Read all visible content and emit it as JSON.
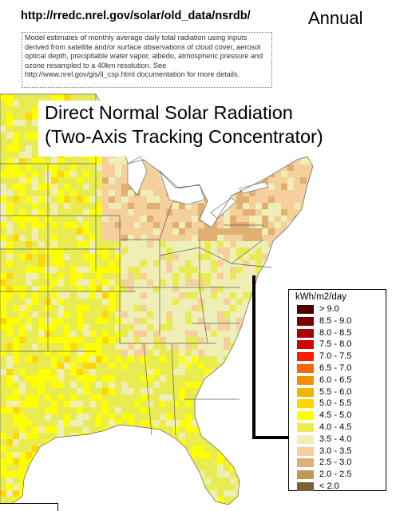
{
  "header": {
    "url": "http://rredc.nrel.gov/solar/old_data/nsrdb/",
    "period": "Annual"
  },
  "note": {
    "text": "Model estimates of monthly average daily total radiation using inputs derived from satellite and/or surface observations of cloud cover, aerosol optical depth, precipitable water vapor, albedo, atmospheric pressure and ozone resampled to a 40km resolution. See http://www.nrel.gov/gis/il_csp.html documentation for more details."
  },
  "title": {
    "line1": "Direct Normal Solar Radiation",
    "line2": "(Two-Axis Tracking Concentrator)"
  },
  "legend": {
    "unit": "kWh/m2/day",
    "classes": [
      {
        "label": "> 9.0",
        "color": "#4a0000"
      },
      {
        "label": "8.5 - 9.0",
        "color": "#7a0000"
      },
      {
        "label": "8.0 - 8.5",
        "color": "#a80000"
      },
      {
        "label": "7.5 - 8.0",
        "color": "#d20000"
      },
      {
        "label": "7.0 - 7.5",
        "color": "#ff1a00"
      },
      {
        "label": "6.5 - 7.0",
        "color": "#f06a00"
      },
      {
        "label": "6.0 - 6.5",
        "color": "#f29000"
      },
      {
        "label": "5.5 - 6.0",
        "color": "#f6b400"
      },
      {
        "label": "5.0 - 5.5",
        "color": "#ffd700"
      },
      {
        "label": "4.5 - 5.0",
        "color": "#ffff00"
      },
      {
        "label": "4.0 - 4.5",
        "color": "#e8ec50"
      },
      {
        "label": "3.5 - 4.0",
        "color": "#eeeeb6"
      },
      {
        "label": "3.0 - 3.5",
        "color": "#f5cf9c"
      },
      {
        "label": "2.5 - 3.0",
        "color": "#dfb071"
      },
      {
        "label": "2.0 - 2.5",
        "color": "#c29852"
      },
      {
        "label": "< 2.0",
        "color": "#7c6238"
      }
    ]
  },
  "map_colors": {
    "north_tan": "#f5cf9c",
    "mid_pale": "#eeeeb6",
    "south_yellow": "#e8ec50",
    "bright_yellow": "#ffff00",
    "gold": "#ffd700",
    "brown_tan": "#dfb071",
    "water": "#ffffff",
    "border": "#606060"
  }
}
